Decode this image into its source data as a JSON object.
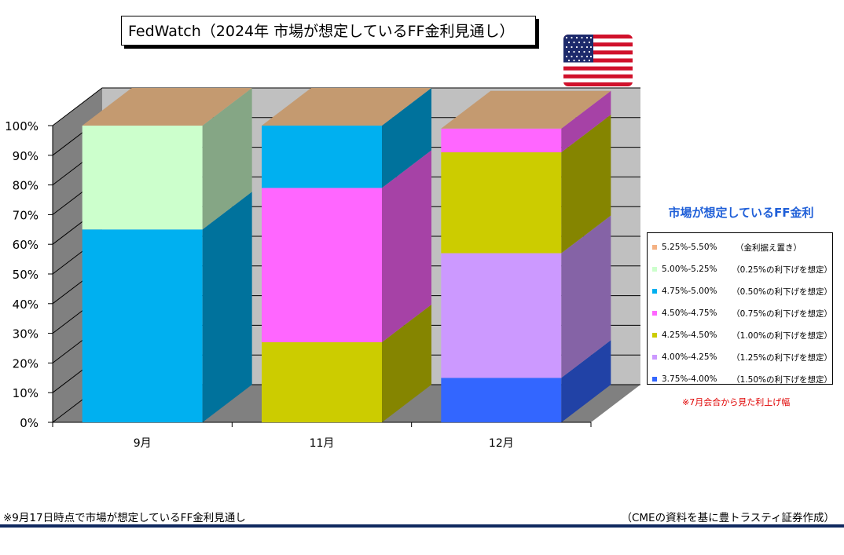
{
  "title": "FedWatch（2024年 市場が想定しているFF金利見通し）",
  "chart_data": {
    "type": "bar",
    "stacked": true,
    "three_d": true,
    "categories": [
      "9月",
      "11月",
      "12月"
    ],
    "y_tick_labels": [
      "0%",
      "10%",
      "20%",
      "30%",
      "40%",
      "50%",
      "60%",
      "70%",
      "80%",
      "90%",
      "100%"
    ],
    "ylim": [
      0,
      100
    ],
    "grid": true,
    "legend_position": "right",
    "series": [
      {
        "name": "3.75%-4.00%",
        "note": "（1.50%の利下げを想定）",
        "color": "#3366ff",
        "values": [
          0,
          0,
          15
        ]
      },
      {
        "name": "4.00%-4.25%",
        "note": "（1.25%の利下げを想定）",
        "color": "#cc99ff",
        "values": [
          0,
          0,
          42
        ]
      },
      {
        "name": "4.25%-4.50%",
        "note": "（1.00%の利下げを想定）",
        "color": "#cccc00",
        "values": [
          0,
          27,
          34
        ]
      },
      {
        "name": "4.50%-4.75%",
        "note": "（0.75%の利下げを想定）",
        "color": "#ff66ff",
        "values": [
          0,
          52,
          8
        ]
      },
      {
        "name": "4.75%-5.00%",
        "note": "（0.50%の利下げを想定）",
        "color": "#00b0f0",
        "values": [
          65,
          21,
          0
        ]
      },
      {
        "name": "5.00%-5.25%",
        "note": "（0.25%の利下げを想定）",
        "color": "#ccffcc",
        "values": [
          35,
          0,
          0
        ]
      },
      {
        "name": "5.25%-5.50%",
        "note": "（金利据え置き）",
        "color": "#f4b183",
        "values": [
          0,
          0,
          0
        ]
      }
    ],
    "top_cap_color": "#c49a70"
  },
  "legend": {
    "title": "市場が想定しているFF金利",
    "footnote": "※7月会合から見た利上げ幅"
  },
  "footnotes": {
    "left": "※9月17日時点で市場が想定しているFF金利見通し",
    "right": "（CMEの資料を基に豊トラスティ証券作成）"
  },
  "flag": "us-flag-icon"
}
